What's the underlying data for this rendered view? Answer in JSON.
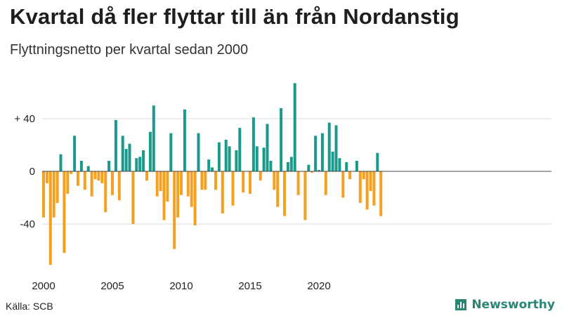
{
  "title": "Kvartal då fler flyttar till än från Nordanstig",
  "subtitle": "Flyttningsnetto per kvartal sedan 2000",
  "source": "Källa: SCB",
  "brand": "Newsworthy",
  "colors": {
    "positive": "#1a9a8a",
    "negative": "#f5a01e",
    "grid": "#dddddd",
    "zero_line": "#444444",
    "brand": "#2b8574"
  },
  "chart_data": {
    "type": "bar",
    "start_year": 2000,
    "quarters_per_year": 4,
    "ylim": [
      -75,
      70
    ],
    "yticks": [
      {
        "value": 40,
        "label": "+ 40"
      },
      {
        "value": 0,
        "label": "0"
      },
      {
        "value": -40,
        "label": "-40"
      }
    ],
    "xticks": [
      {
        "year": 2000,
        "label": "2000"
      },
      {
        "year": 2005,
        "label": "2005"
      },
      {
        "year": 2010,
        "label": "2010"
      },
      {
        "year": 2015,
        "label": "2015"
      },
      {
        "year": 2020,
        "label": "2020"
      }
    ],
    "values": [
      -35,
      -9,
      -71,
      -35,
      -24,
      13,
      -62,
      -17,
      -2,
      27,
      -11,
      8,
      -14,
      4,
      -19,
      -6,
      -7,
      -9,
      -31,
      8,
      -18,
      39,
      -22,
      27,
      17,
      21,
      -40,
      10,
      11,
      16,
      -7,
      30,
      50,
      -19,
      -15,
      -37,
      -23,
      29,
      -59,
      -35,
      -18,
      47,
      -19,
      -27,
      -41,
      29,
      -14,
      -14,
      9,
      3,
      -14,
      22,
      -32,
      24,
      19,
      -26,
      16,
      33,
      -16,
      0,
      -17,
      41,
      19,
      -7,
      18,
      36,
      8,
      -14,
      -27,
      48,
      -34,
      7,
      11,
      67,
      -18,
      0,
      -37,
      5,
      -1,
      27,
      1,
      29,
      -18,
      37,
      15,
      35,
      10,
      -20,
      7,
      -6,
      0,
      8,
      -24,
      -6,
      -29,
      -15,
      -26,
      14,
      -34
    ],
    "grid": true,
    "legend": "none"
  }
}
